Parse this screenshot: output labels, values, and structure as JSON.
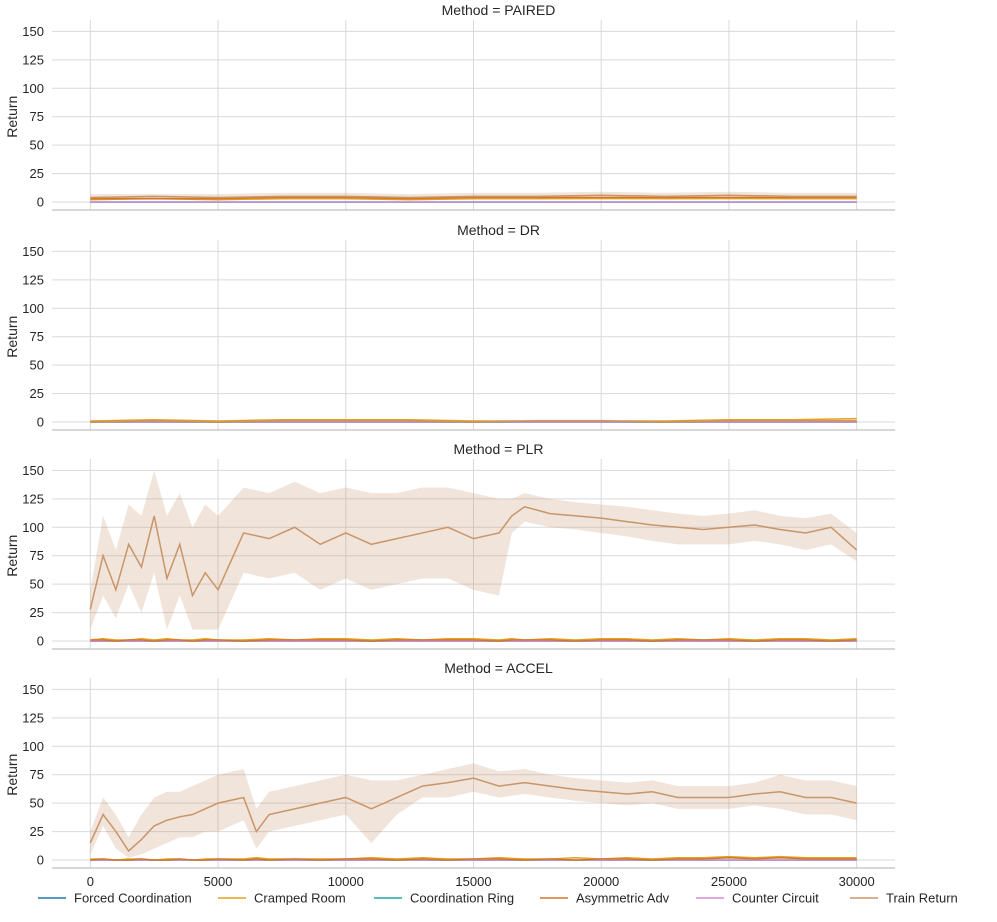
{
  "chart_data": {
    "type": "line",
    "xlim": [
      -1500,
      31500
    ],
    "ylim": [
      -7,
      160
    ],
    "ylabel": "Return",
    "xticks": [
      0,
      5000,
      10000,
      15000,
      20000,
      25000,
      30000
    ],
    "yticks": [
      0,
      25,
      50,
      75,
      100,
      125,
      150
    ],
    "grid": true,
    "legend_position": "bottom",
    "series_meta": [
      {
        "name": "Forced Coordination",
        "color": "#1f77b4"
      },
      {
        "name": "Cramped Room",
        "color": "#e6a118"
      },
      {
        "name": "Coordination Ring",
        "color": "#1fa8a3"
      },
      {
        "name": "Asymmetric Adv",
        "color": "#d2762e"
      },
      {
        "name": "Counter Circuit",
        "color": "#d68ad6"
      },
      {
        "name": "Train Return",
        "color": "#c9956a"
      }
    ],
    "panels": [
      {
        "title": "Method = PAIRED",
        "x": [
          0,
          2500,
          5000,
          7500,
          10000,
          12500,
          15000,
          17500,
          20000,
          22500,
          25000,
          27500,
          30000
        ],
        "train_return": [
          4,
          5,
          4,
          5,
          5,
          4,
          5,
          5,
          6,
          5,
          6,
          5,
          5
        ],
        "train_return_band": [
          [
            2,
            7
          ],
          [
            2,
            7
          ],
          [
            2,
            7
          ],
          [
            2,
            8
          ],
          [
            2,
            8
          ],
          [
            2,
            7
          ],
          [
            2,
            8
          ],
          [
            2,
            8
          ],
          [
            3,
            9
          ],
          [
            2,
            8
          ],
          [
            3,
            9
          ],
          [
            2,
            8
          ],
          [
            2,
            8
          ]
        ],
        "eval": {
          "Forced Coordination": [
            0,
            0,
            0,
            0,
            0,
            0,
            0,
            0,
            0,
            0,
            0,
            0,
            0
          ],
          "Cramped Room": [
            2,
            3,
            2,
            3,
            3,
            2,
            3,
            3,
            3,
            3,
            3,
            3,
            3
          ],
          "Coordination Ring": [
            0,
            0,
            0,
            0,
            0,
            0,
            0,
            0,
            0,
            0,
            0,
            0,
            0
          ],
          "Asymmetric Adv": [
            3,
            3,
            3,
            4,
            4,
            3,
            4,
            4,
            4,
            4,
            4,
            4,
            4
          ],
          "Counter Circuit": [
            0,
            0,
            0,
            0,
            0,
            0,
            0,
            0,
            0,
            0,
            0,
            0,
            0
          ]
        }
      },
      {
        "title": "Method = DR",
        "x": [
          0,
          2500,
          5000,
          7500,
          10000,
          12500,
          15000,
          17500,
          20000,
          22500,
          25000,
          27500,
          30000
        ],
        "train_return": [
          0,
          1,
          0,
          1,
          1,
          1,
          0,
          1,
          1,
          0,
          1,
          1,
          1
        ],
        "train_return_band": [
          [
            0,
            1
          ],
          [
            0,
            2
          ],
          [
            0,
            1
          ],
          [
            0,
            2
          ],
          [
            0,
            2
          ],
          [
            0,
            2
          ],
          [
            0,
            1
          ],
          [
            0,
            2
          ],
          [
            0,
            2
          ],
          [
            0,
            1
          ],
          [
            0,
            2
          ],
          [
            0,
            2
          ],
          [
            0,
            2
          ]
        ],
        "eval": {
          "Forced Coordination": [
            0,
            0,
            0,
            0,
            0,
            0,
            0,
            0,
            0,
            0,
            0,
            0,
            0
          ],
          "Cramped Room": [
            1,
            2,
            1,
            2,
            2,
            2,
            1,
            1,
            1,
            1,
            2,
            2,
            3
          ],
          "Coordination Ring": [
            0,
            0,
            0,
            0,
            0,
            0,
            0,
            0,
            0,
            0,
            0,
            0,
            0
          ],
          "Asymmetric Adv": [
            0,
            1,
            0,
            1,
            1,
            1,
            0,
            1,
            1,
            0,
            1,
            1,
            1
          ],
          "Counter Circuit": [
            0,
            0,
            0,
            0,
            0,
            0,
            0,
            0,
            0,
            0,
            0,
            0,
            0
          ]
        }
      },
      {
        "title": "Method = PLR",
        "x": [
          0,
          500,
          1000,
          1500,
          2000,
          2500,
          3000,
          3500,
          4000,
          4500,
          5000,
          6000,
          7000,
          8000,
          9000,
          10000,
          11000,
          12000,
          13000,
          14000,
          15000,
          16000,
          16500,
          17000,
          18000,
          19000,
          20000,
          21000,
          22000,
          23000,
          24000,
          25000,
          26000,
          27000,
          28000,
          29000,
          30000
        ],
        "train_return": [
          28,
          75,
          45,
          85,
          65,
          110,
          55,
          85,
          40,
          60,
          45,
          95,
          90,
          100,
          85,
          95,
          85,
          90,
          95,
          100,
          90,
          95,
          110,
          118,
          112,
          110,
          108,
          105,
          102,
          100,
          98,
          100,
          102,
          98,
          95,
          100,
          80
        ],
        "train_return_band": [
          [
            10,
            45
          ],
          [
            40,
            110
          ],
          [
            20,
            80
          ],
          [
            50,
            120
          ],
          [
            25,
            110
          ],
          [
            60,
            150
          ],
          [
            10,
            110
          ],
          [
            40,
            130
          ],
          [
            10,
            100
          ],
          [
            10,
            120
          ],
          [
            10,
            110
          ],
          [
            60,
            135
          ],
          [
            55,
            130
          ],
          [
            60,
            140
          ],
          [
            45,
            130
          ],
          [
            55,
            135
          ],
          [
            45,
            130
          ],
          [
            50,
            130
          ],
          [
            55,
            135
          ],
          [
            55,
            135
          ],
          [
            45,
            130
          ],
          [
            40,
            125
          ],
          [
            95,
            125
          ],
          [
            105,
            130
          ],
          [
            100,
            125
          ],
          [
            98,
            122
          ],
          [
            95,
            120
          ],
          [
            92,
            118
          ],
          [
            88,
            115
          ],
          [
            85,
            112
          ],
          [
            85,
            110
          ],
          [
            85,
            112
          ],
          [
            88,
            115
          ],
          [
            85,
            110
          ],
          [
            80,
            108
          ],
          [
            85,
            112
          ],
          [
            70,
            95
          ]
        ],
        "eval": {
          "Forced Coordination": [
            0,
            0,
            0,
            0,
            0,
            0,
            0,
            0,
            0,
            0,
            0,
            0,
            0,
            0,
            0,
            0,
            0,
            0,
            0,
            0,
            0,
            0,
            0,
            0,
            0,
            0,
            0,
            0,
            0,
            0,
            0,
            0,
            0,
            0,
            0,
            0,
            0
          ],
          "Cramped Room": [
            1,
            2,
            1,
            1,
            2,
            1,
            2,
            1,
            1,
            2,
            1,
            1,
            2,
            1,
            2,
            2,
            1,
            2,
            1,
            2,
            2,
            1,
            2,
            1,
            2,
            1,
            2,
            2,
            1,
            2,
            1,
            2,
            1,
            2,
            2,
            1,
            2
          ],
          "Coordination Ring": [
            0,
            0,
            0,
            0,
            0,
            0,
            0,
            0,
            0,
            0,
            0,
            0,
            0,
            0,
            0,
            0,
            0,
            0,
            0,
            0,
            0,
            0,
            0,
            0,
            0,
            0,
            0,
            0,
            0,
            0,
            0,
            0,
            0,
            0,
            0,
            0,
            0
          ],
          "Asymmetric Adv": [
            1,
            1,
            0,
            1,
            1,
            0,
            1,
            1,
            0,
            1,
            1,
            0,
            1,
            1,
            1,
            1,
            0,
            1,
            1,
            1,
            1,
            0,
            1,
            1,
            1,
            0,
            1,
            1,
            0,
            1,
            1,
            1,
            0,
            1,
            1,
            0,
            1
          ],
          "Counter Circuit": [
            0,
            0,
            0,
            0,
            0,
            0,
            0,
            0,
            0,
            0,
            0,
            0,
            0,
            0,
            0,
            0,
            0,
            0,
            0,
            0,
            0,
            0,
            0,
            0,
            0,
            0,
            0,
            0,
            0,
            0,
            0,
            0,
            0,
            0,
            0,
            0,
            0
          ]
        }
      },
      {
        "title": "Method = ACCEL",
        "x": [
          0,
          500,
          1000,
          1500,
          2000,
          2500,
          3000,
          3500,
          4000,
          4500,
          5000,
          6000,
          6500,
          7000,
          8000,
          9000,
          10000,
          11000,
          12000,
          13000,
          14000,
          15000,
          16000,
          17000,
          18000,
          19000,
          20000,
          21000,
          22000,
          23000,
          24000,
          25000,
          26000,
          27000,
          28000,
          29000,
          30000
        ],
        "train_return": [
          15,
          40,
          25,
          8,
          18,
          30,
          35,
          38,
          40,
          45,
          50,
          55,
          25,
          40,
          45,
          50,
          55,
          45,
          55,
          65,
          68,
          72,
          65,
          68,
          65,
          62,
          60,
          58,
          60,
          55,
          55,
          55,
          58,
          60,
          55,
          55,
          50
        ],
        "train_return_band": [
          [
            5,
            25
          ],
          [
            30,
            55
          ],
          [
            10,
            40
          ],
          [
            2,
            20
          ],
          [
            5,
            40
          ],
          [
            10,
            55
          ],
          [
            15,
            60
          ],
          [
            20,
            60
          ],
          [
            20,
            65
          ],
          [
            25,
            70
          ],
          [
            25,
            75
          ],
          [
            35,
            80
          ],
          [
            10,
            45
          ],
          [
            25,
            60
          ],
          [
            30,
            65
          ],
          [
            35,
            70
          ],
          [
            40,
            75
          ],
          [
            15,
            70
          ],
          [
            40,
            70
          ],
          [
            55,
            75
          ],
          [
            55,
            80
          ],
          [
            60,
            85
          ],
          [
            55,
            78
          ],
          [
            58,
            80
          ],
          [
            55,
            75
          ],
          [
            52,
            72
          ],
          [
            50,
            70
          ],
          [
            48,
            68
          ],
          [
            50,
            70
          ],
          [
            45,
            65
          ],
          [
            45,
            65
          ],
          [
            45,
            65
          ],
          [
            48,
            68
          ],
          [
            45,
            75
          ],
          [
            40,
            70
          ],
          [
            40,
            70
          ],
          [
            35,
            65
          ]
        ],
        "eval": {
          "Forced Coordination": [
            0,
            0,
            0,
            0,
            0,
            0,
            0,
            0,
            0,
            0,
            0,
            0,
            0,
            0,
            0,
            0,
            0,
            0,
            0,
            0,
            0,
            0,
            0,
            0,
            0,
            0,
            0,
            0,
            0,
            0,
            0,
            0,
            0,
            0,
            0,
            0,
            0
          ],
          "Cramped Room": [
            1,
            1,
            0,
            1,
            1,
            0,
            1,
            1,
            0,
            1,
            1,
            1,
            2,
            1,
            1,
            1,
            1,
            2,
            1,
            2,
            1,
            1,
            2,
            1,
            1,
            2,
            1,
            2,
            1,
            2,
            2,
            3,
            2,
            3,
            2,
            2,
            2
          ],
          "Coordination Ring": [
            0,
            0,
            0,
            0,
            0,
            0,
            0,
            0,
            0,
            0,
            0,
            0,
            0,
            0,
            0,
            0,
            0,
            0,
            0,
            0,
            0,
            0,
            0,
            0,
            0,
            0,
            0,
            0,
            0,
            0,
            0,
            0,
            0,
            0,
            0,
            0,
            0
          ],
          "Asymmetric Adv": [
            0,
            1,
            0,
            0,
            1,
            0,
            0,
            1,
            0,
            0,
            1,
            0,
            1,
            0,
            1,
            0,
            1,
            1,
            0,
            1,
            0,
            1,
            1,
            0,
            1,
            0,
            1,
            1,
            0,
            1,
            1,
            2,
            1,
            2,
            1,
            1,
            1
          ],
          "Counter Circuit": [
            0,
            0,
            0,
            0,
            0,
            0,
            0,
            0,
            0,
            0,
            0,
            0,
            0,
            0,
            0,
            0,
            0,
            0,
            0,
            0,
            0,
            0,
            0,
            0,
            0,
            0,
            0,
            0,
            0,
            0,
            0,
            0,
            0,
            0,
            0,
            0,
            0
          ]
        }
      }
    ]
  }
}
